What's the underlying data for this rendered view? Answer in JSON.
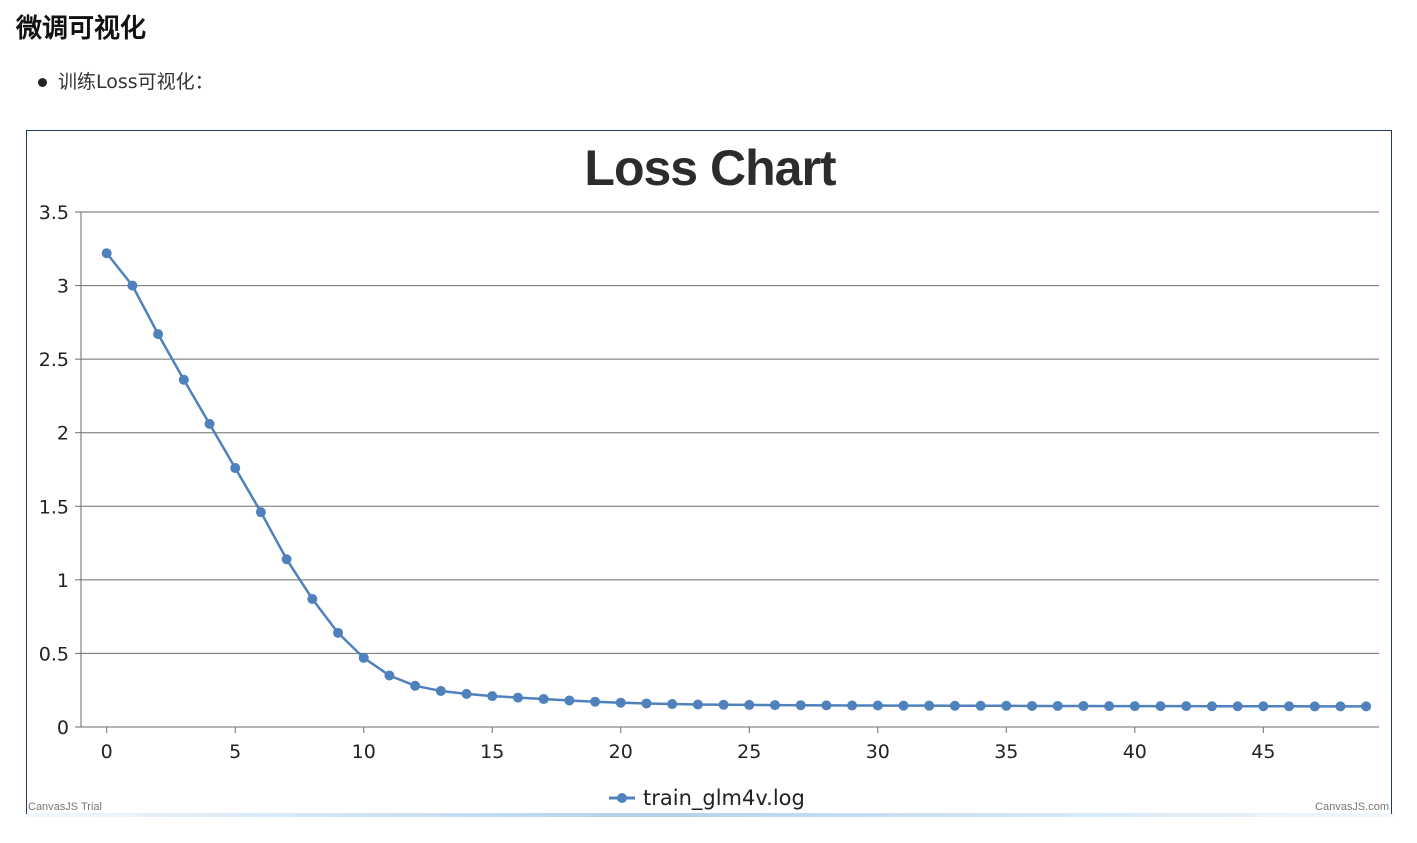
{
  "page": {
    "heading": "微调可视化",
    "bullet": "训练Loss可视化："
  },
  "chart_data": {
    "type": "line",
    "title": "Loss Chart",
    "xlabel": "",
    "ylabel": "",
    "xlim": [
      -1,
      49.5
    ],
    "ylim": [
      0,
      3.5
    ],
    "x_ticks": [
      0,
      5,
      10,
      15,
      20,
      25,
      30,
      35,
      40,
      45
    ],
    "y_ticks": [
      0,
      0.5,
      1,
      1.5,
      2,
      2.5,
      3,
      3.5
    ],
    "x_tick_labels": [
      "0",
      "5",
      "10",
      "15",
      "20",
      "25",
      "30",
      "35",
      "40",
      "45"
    ],
    "y_tick_labels": [
      "0",
      "0.5",
      "1",
      "1.5",
      "2",
      "2.5",
      "3",
      "3.5"
    ],
    "grid": "horizontal",
    "legend_position": "bottom-center",
    "color": "#4f81bc",
    "series": [
      {
        "name": "train_glm4v.log",
        "x": [
          0,
          1,
          2,
          3,
          4,
          5,
          6,
          7,
          8,
          9,
          10,
          11,
          12,
          13,
          14,
          15,
          16,
          17,
          18,
          19,
          20,
          21,
          22,
          23,
          24,
          25,
          26,
          27,
          28,
          29,
          30,
          31,
          32,
          33,
          34,
          35,
          36,
          37,
          38,
          39,
          40,
          41,
          42,
          43,
          44,
          45,
          46,
          47,
          48,
          49
        ],
        "values": [
          3.22,
          3.0,
          2.67,
          2.36,
          2.06,
          1.76,
          1.46,
          1.14,
          0.87,
          0.64,
          0.47,
          0.35,
          0.28,
          0.245,
          0.225,
          0.21,
          0.2,
          0.19,
          0.18,
          0.172,
          0.165,
          0.16,
          0.156,
          0.153,
          0.151,
          0.15,
          0.149,
          0.148,
          0.147,
          0.146,
          0.146,
          0.145,
          0.145,
          0.144,
          0.144,
          0.144,
          0.143,
          0.143,
          0.143,
          0.142,
          0.142,
          0.142,
          0.142,
          0.141,
          0.141,
          0.141,
          0.141,
          0.14,
          0.14,
          0.14
        ]
      }
    ],
    "credits": {
      "left": "CanvasJS Trial",
      "right": "CanvasJS.com"
    }
  }
}
